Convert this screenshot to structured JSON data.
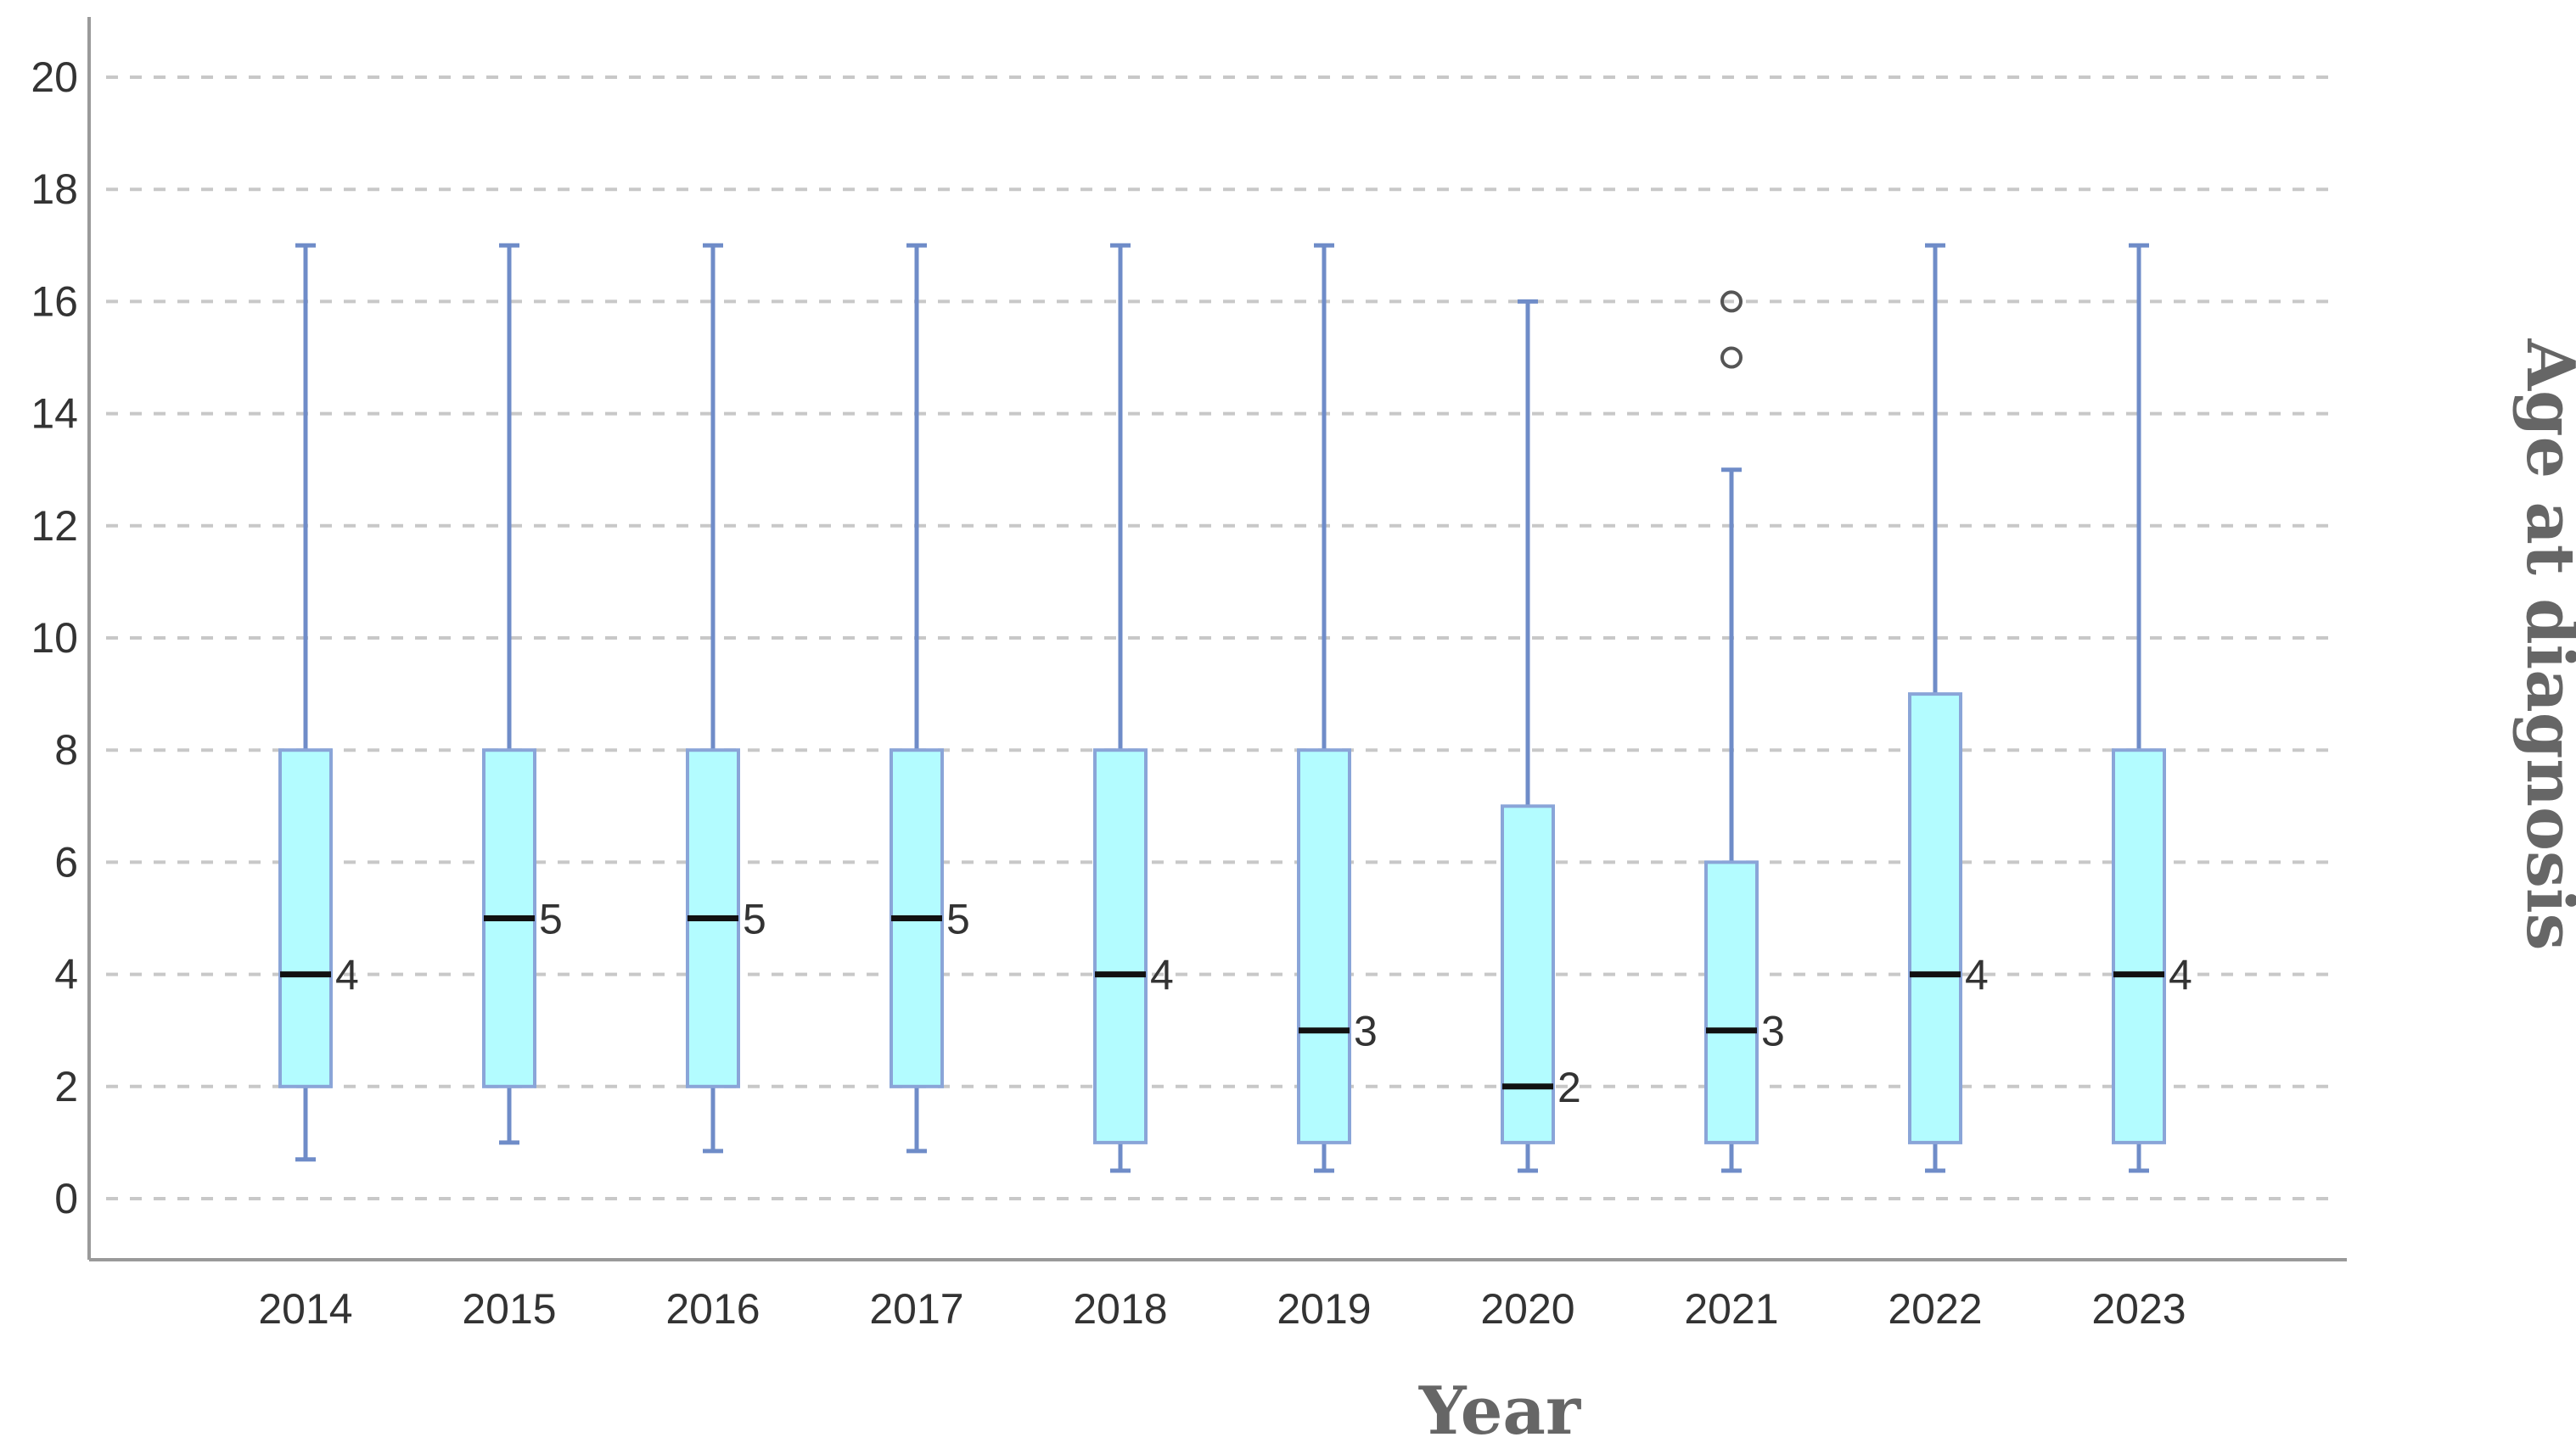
{
  "chart_data": {
    "type": "boxplot",
    "title": "",
    "xlabel": "Year",
    "ylabel": "Age at diagnosis",
    "ylabel_position": "right",
    "ylim": [
      -1,
      21
    ],
    "yticks": [
      "0",
      "2",
      "4",
      "6",
      "8",
      "10",
      "12",
      "14",
      "16",
      "18",
      "20"
    ],
    "grid": "horizontal dashed",
    "legend": "none",
    "colors": {
      "box_fill": "#b3fcff",
      "box_edge": "#8aa5d8",
      "whisker": "#6f8cc8",
      "median": "#111111",
      "grid": "#c8c8c8",
      "axis": "#9a9a9a",
      "outlier": "#555555"
    },
    "categories": [
      "2014",
      "2015",
      "2016",
      "2017",
      "2018",
      "2019",
      "2020",
      "2021",
      "2022",
      "2023"
    ],
    "boxes": [
      {
        "category": "2014",
        "whisker_low": 0.7,
        "q1": 2,
        "median": 4,
        "q3": 8,
        "whisker_high": 17,
        "median_label": "4",
        "outliers": []
      },
      {
        "category": "2015",
        "whisker_low": 1,
        "q1": 2,
        "median": 5,
        "q3": 8,
        "whisker_high": 17,
        "median_label": "5",
        "outliers": []
      },
      {
        "category": "2016",
        "whisker_low": 0.85,
        "q1": 2,
        "median": 5,
        "q3": 8,
        "whisker_high": 17,
        "median_label": "5",
        "outliers": []
      },
      {
        "category": "2017",
        "whisker_low": 0.85,
        "q1": 2,
        "median": 5,
        "q3": 8,
        "whisker_high": 17,
        "median_label": "5",
        "outliers": []
      },
      {
        "category": "2018",
        "whisker_low": 0.5,
        "q1": 1,
        "median": 4,
        "q3": 8,
        "whisker_high": 17,
        "median_label": "4",
        "outliers": []
      },
      {
        "category": "2019",
        "whisker_low": 0.5,
        "q1": 1,
        "median": 3,
        "q3": 8,
        "whisker_high": 17,
        "median_label": "3",
        "outliers": []
      },
      {
        "category": "2020",
        "whisker_low": 0.5,
        "q1": 1,
        "median": 2,
        "q3": 7,
        "whisker_high": 16,
        "median_label": "2",
        "outliers": []
      },
      {
        "category": "2021",
        "whisker_low": 0.5,
        "q1": 1,
        "median": 3,
        "q3": 6,
        "whisker_high": 13,
        "median_label": "3",
        "outliers": [
          15,
          16
        ]
      },
      {
        "category": "2022",
        "whisker_low": 0.5,
        "q1": 1,
        "median": 4,
        "q3": 9,
        "whisker_high": 17,
        "median_label": "4",
        "outliers": []
      },
      {
        "category": "2023",
        "whisker_low": 0.5,
        "q1": 1,
        "median": 4,
        "q3": 8,
        "whisker_high": 17,
        "median_label": "4",
        "outliers": []
      }
    ]
  }
}
